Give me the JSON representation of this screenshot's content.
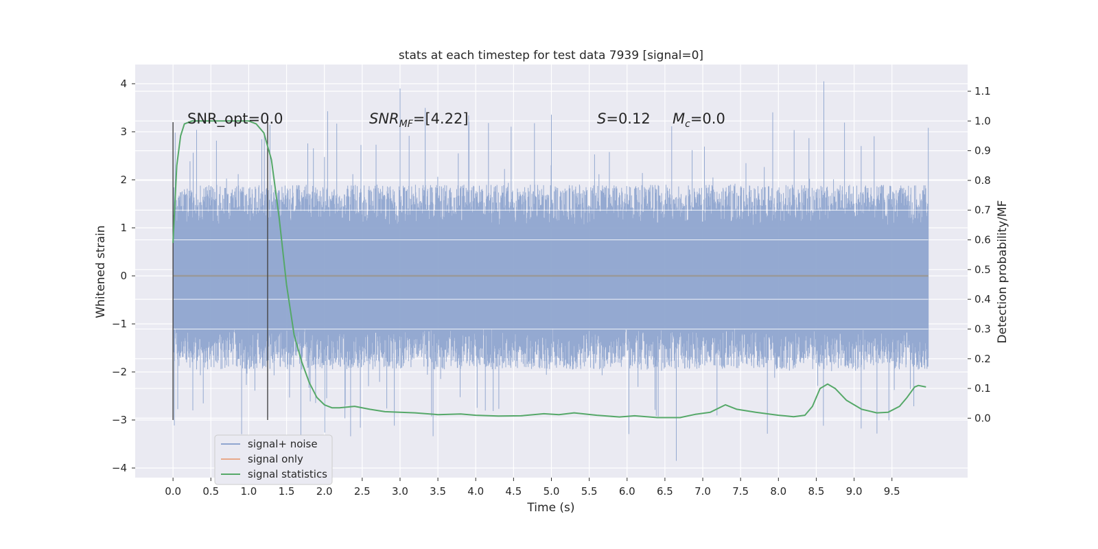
{
  "chart_data": {
    "type": "line",
    "title": "stats at each timestep for test data 7939 [signal=0]",
    "xlabel": "Time (s)",
    "ylabel": "Whitened strain",
    "ylabel_right": "Detection probability/MF",
    "xlim": [
      -0.5,
      10.5
    ],
    "ylim": [
      -4.2,
      4.4
    ],
    "ylim_right": [
      -0.2,
      1.19
    ],
    "x_ticks": [
      "0.0",
      "0.5",
      "1.0",
      "1.5",
      "2.0",
      "2.5",
      "3.0",
      "3.5",
      "4.0",
      "4.5",
      "5.0",
      "5.5",
      "6.0",
      "6.5",
      "7.0",
      "7.5",
      "8.0",
      "8.5",
      "9.0",
      "9.5"
    ],
    "y_ticks": [
      "4",
      "3",
      "2",
      "1",
      "0",
      "−1",
      "−2",
      "−3",
      "−4"
    ],
    "y_ticks_right": [
      "1.1",
      "1.0",
      "0.9",
      "0.8",
      "0.7",
      "0.6",
      "0.5",
      "0.4",
      "0.3",
      "0.2",
      "0.1",
      "0.0"
    ],
    "grid": true,
    "legend_position": "lower-left",
    "annotations": {
      "snr_opt": "SNR_opt=0.0",
      "snr_mf_base": "SNR",
      "snr_mf_sub": "MF",
      "snr_mf_value": "=[4.22]",
      "s_label": "S",
      "s_value": "=0.12",
      "mc_label": "M",
      "mc_sub": "c",
      "mc_value": "=0.0"
    },
    "vertical_markers": [
      {
        "x": 0.0,
        "y_from": -3.0,
        "y_to": 3.2
      },
      {
        "x": 1.25,
        "y_from": -3.0,
        "y_to": 3.2
      }
    ],
    "series": [
      {
        "name": "signal+ noise",
        "color": "#8fa5cf",
        "kind": "noise",
        "x_range": [
          0.0,
          9.98
        ],
        "typical_range": [
          -1.95,
          1.9
        ],
        "extreme_min": -3.85,
        "extreme_max": 4.05
      },
      {
        "name": "signal only",
        "color": "#e8a889",
        "kind": "flat",
        "x": [
          0.0,
          9.98
        ],
        "y": [
          0.0,
          0.0
        ]
      },
      {
        "name": "signal statistics",
        "color": "#55a868",
        "axis": "right",
        "x": [
          0.0,
          0.05,
          0.1,
          0.15,
          0.25,
          0.4,
          0.6,
          0.8,
          1.0,
          1.1,
          1.2,
          1.3,
          1.4,
          1.5,
          1.6,
          1.7,
          1.8,
          1.9,
          2.0,
          2.1,
          2.2,
          2.4,
          2.6,
          2.8,
          3.0,
          3.2,
          3.5,
          3.8,
          4.0,
          4.3,
          4.6,
          4.9,
          5.1,
          5.3,
          5.6,
          5.9,
          6.1,
          6.4,
          6.7,
          6.9,
          7.1,
          7.3,
          7.45,
          7.7,
          8.0,
          8.2,
          8.35,
          8.45,
          8.55,
          8.65,
          8.75,
          8.9,
          9.1,
          9.3,
          9.45,
          9.6,
          9.7,
          9.8,
          9.85,
          9.95
        ],
        "y": [
          0.59,
          0.85,
          0.95,
          0.99,
          1.0,
          1.0,
          1.0,
          1.0,
          1.0,
          0.99,
          0.96,
          0.87,
          0.68,
          0.45,
          0.28,
          0.19,
          0.12,
          0.07,
          0.045,
          0.035,
          0.035,
          0.04,
          0.03,
          0.022,
          0.02,
          0.018,
          0.012,
          0.014,
          0.01,
          0.007,
          0.008,
          0.015,
          0.012,
          0.018,
          0.01,
          0.004,
          0.008,
          0.002,
          0.002,
          0.013,
          0.02,
          0.045,
          0.03,
          0.02,
          0.01,
          0.005,
          0.01,
          0.04,
          0.1,
          0.115,
          0.1,
          0.06,
          0.03,
          0.018,
          0.02,
          0.04,
          0.07,
          0.105,
          0.11,
          0.105
        ]
      }
    ]
  }
}
